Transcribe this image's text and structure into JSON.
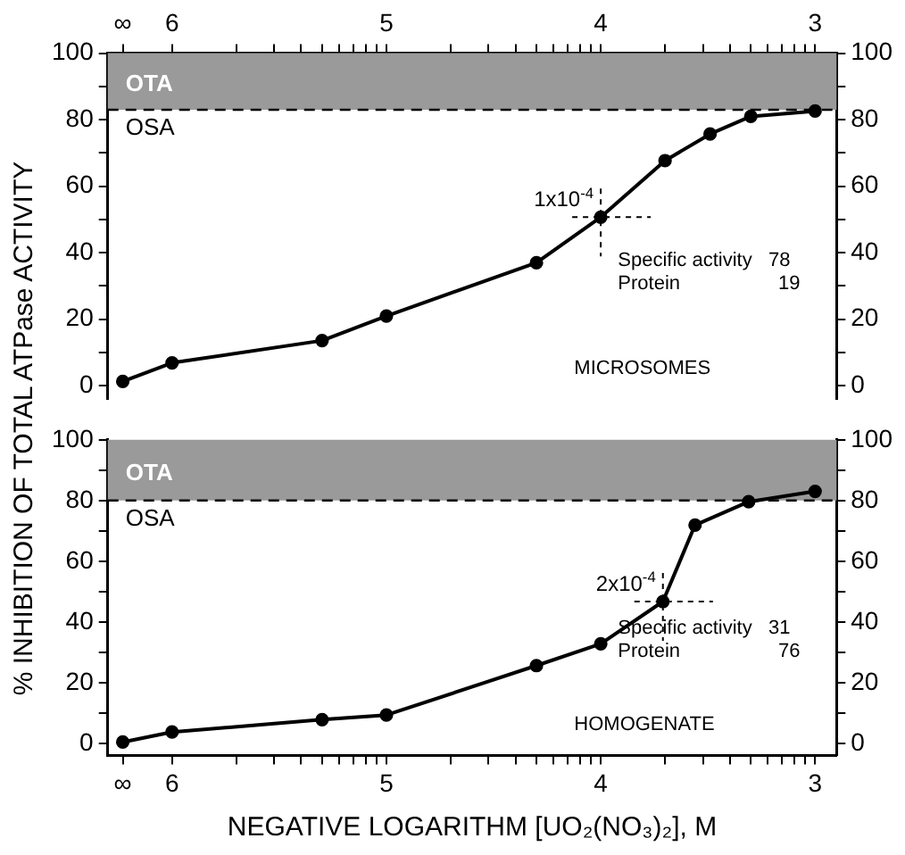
{
  "chart_data": [
    {
      "type": "line",
      "ylabel": "% INHIBITION OF TOTAL ATPase ACTIVITY",
      "xlim": [
        6.3,
        2.9
      ],
      "xticks": [
        {
          "value": 6.23,
          "label": "∞"
        },
        6,
        {
          "value": 5.699,
          "label": null
        },
        {
          "value": 5.523,
          "label": null
        },
        {
          "value": 5.398,
          "label": null
        },
        {
          "value": 5.301,
          "label": null
        },
        {
          "value": 5.222,
          "label": null
        },
        {
          "value": 5.155,
          "label": null
        },
        {
          "value": 5.097,
          "label": null
        },
        {
          "value": 5.046,
          "label": null
        },
        5,
        {
          "value": 4.699,
          "label": null
        },
        {
          "value": 4.523,
          "label": null
        },
        {
          "value": 4.398,
          "label": null
        },
        {
          "value": 4.301,
          "label": null
        },
        {
          "value": 4.222,
          "label": null
        },
        {
          "value": 4.155,
          "label": null
        },
        {
          "value": 4.097,
          "label": null
        },
        {
          "value": 4.046,
          "label": null
        },
        4,
        {
          "value": 3.699,
          "label": null
        },
        {
          "value": 3.523,
          "label": null
        },
        {
          "value": 3.398,
          "label": null
        },
        {
          "value": 3.301,
          "label": null
        },
        {
          "value": 3.222,
          "label": null
        },
        {
          "value": 3.155,
          "label": null
        },
        {
          "value": 3.097,
          "label": null
        },
        {
          "value": 3.046,
          "label": null
        },
        3
      ],
      "ylim": [
        -4,
        100
      ],
      "yticks": [
        0,
        {
          "value": 10,
          "label": null
        },
        20,
        {
          "value": 30,
          "label": null
        },
        40,
        {
          "value": 50,
          "label": null
        },
        60,
        {
          "value": 70,
          "label": null
        },
        80,
        {
          "value": 90,
          "label": null
        },
        100
      ],
      "y2lim": [
        -4,
        100
      ],
      "y2ticks": [
        0,
        {
          "value": 10,
          "label": null
        },
        20,
        {
          "value": 30,
          "label": null
        },
        40,
        {
          "value": 50,
          "label": null
        },
        60,
        {
          "value": 70,
          "label": null
        },
        80,
        {
          "value": 90,
          "label": null
        },
        100
      ],
      "x": [
        6.23,
        6,
        5.3,
        5,
        4.3,
        4,
        3.7,
        3.49,
        3.3,
        3.0
      ],
      "series": [
        {
          "color": "#000000",
          "values": [
            1.3,
            6.9,
            13.6,
            21,
            37,
            50.7,
            67.7,
            75.7,
            81,
            82.6
          ]
        }
      ],
      "bands": [
        {
          "axis": "y",
          "from": 83,
          "to": 100,
          "label": "OTA",
          "color": "#9a9a9a"
        }
      ],
      "ref_lines": [
        {
          "axis": "y",
          "value": 83,
          "label": "OSA",
          "line_style": "dashed"
        }
      ],
      "annotations": [
        {
          "text": "1x10$^{-4}$",
          "x": 4,
          "y": 50.7
        },
        "Specific activity   78",
        "Protein                  19",
        "MICROSOMES"
      ],
      "marker": "circle",
      "line_style": "solid",
      "grid": false,
      "legend": false
    },
    {
      "type": "line",
      "xlabel": "NEGATIVE LOGARITHM [UO₂(NO₃)₂], M",
      "xlim": [
        6.3,
        2.9
      ],
      "xticks": [
        {
          "value": 6.23,
          "label": "∞"
        },
        6,
        {
          "value": 5.699,
          "label": null
        },
        {
          "value": 5.523,
          "label": null
        },
        {
          "value": 5.398,
          "label": null
        },
        {
          "value": 5.301,
          "label": null
        },
        {
          "value": 5.222,
          "label": null
        },
        {
          "value": 5.155,
          "label": null
        },
        {
          "value": 5.097,
          "label": null
        },
        {
          "value": 5.046,
          "label": null
        },
        5,
        {
          "value": 4.699,
          "label": null
        },
        {
          "value": 4.523,
          "label": null
        },
        {
          "value": 4.398,
          "label": null
        },
        {
          "value": 4.301,
          "label": null
        },
        {
          "value": 4.222,
          "label": null
        },
        {
          "value": 4.155,
          "label": null
        },
        {
          "value": 4.097,
          "label": null
        },
        {
          "value": 4.046,
          "label": null
        },
        4,
        {
          "value": 3.699,
          "label": null
        },
        {
          "value": 3.523,
          "label": null
        },
        {
          "value": 3.398,
          "label": null
        },
        {
          "value": 3.301,
          "label": null
        },
        {
          "value": 3.222,
          "label": null
        },
        {
          "value": 3.155,
          "label": null
        },
        {
          "value": 3.097,
          "label": null
        },
        {
          "value": 3.046,
          "label": null
        },
        3
      ],
      "ylim": [
        -4,
        100
      ],
      "yticks": [
        0,
        {
          "value": 10,
          "label": null
        },
        20,
        {
          "value": 30,
          "label": null
        },
        40,
        {
          "value": 50,
          "label": null
        },
        60,
        {
          "value": 70,
          "label": null
        },
        80,
        {
          "value": 90,
          "label": null
        },
        100
      ],
      "y2lim": [
        -4,
        100
      ],
      "y2ticks": [
        0,
        {
          "value": 10,
          "label": null
        },
        20,
        {
          "value": 30,
          "label": null
        },
        40,
        {
          "value": 50,
          "label": null
        },
        60,
        {
          "value": 70,
          "label": null
        },
        80,
        {
          "value": 90,
          "label": null
        },
        100
      ],
      "x": [
        6.23,
        6,
        5.3,
        5,
        4.3,
        4,
        3.71,
        3.56,
        3.31,
        3.0
      ],
      "series": [
        {
          "color": "#000000",
          "values": [
            0.4,
            3.7,
            7.8,
            9.3,
            25.6,
            32.8,
            46.7,
            71.9,
            79.6,
            83
          ]
        }
      ],
      "bands": [
        {
          "axis": "y",
          "from": 80,
          "to": 100,
          "label": "OTA",
          "color": "#9a9a9a"
        }
      ],
      "ref_lines": [
        {
          "axis": "y",
          "value": 80,
          "label": "OSA",
          "line_style": "dashed"
        }
      ],
      "annotations": [
        {
          "text": "2x10$^{-4}$",
          "x": 3.71,
          "y": 46.7
        },
        "Specific activity   31",
        "Protein                  76",
        "HOMOGENATE"
      ],
      "marker": "circle",
      "line_style": "solid",
      "grid": false,
      "legend": false
    }
  ]
}
